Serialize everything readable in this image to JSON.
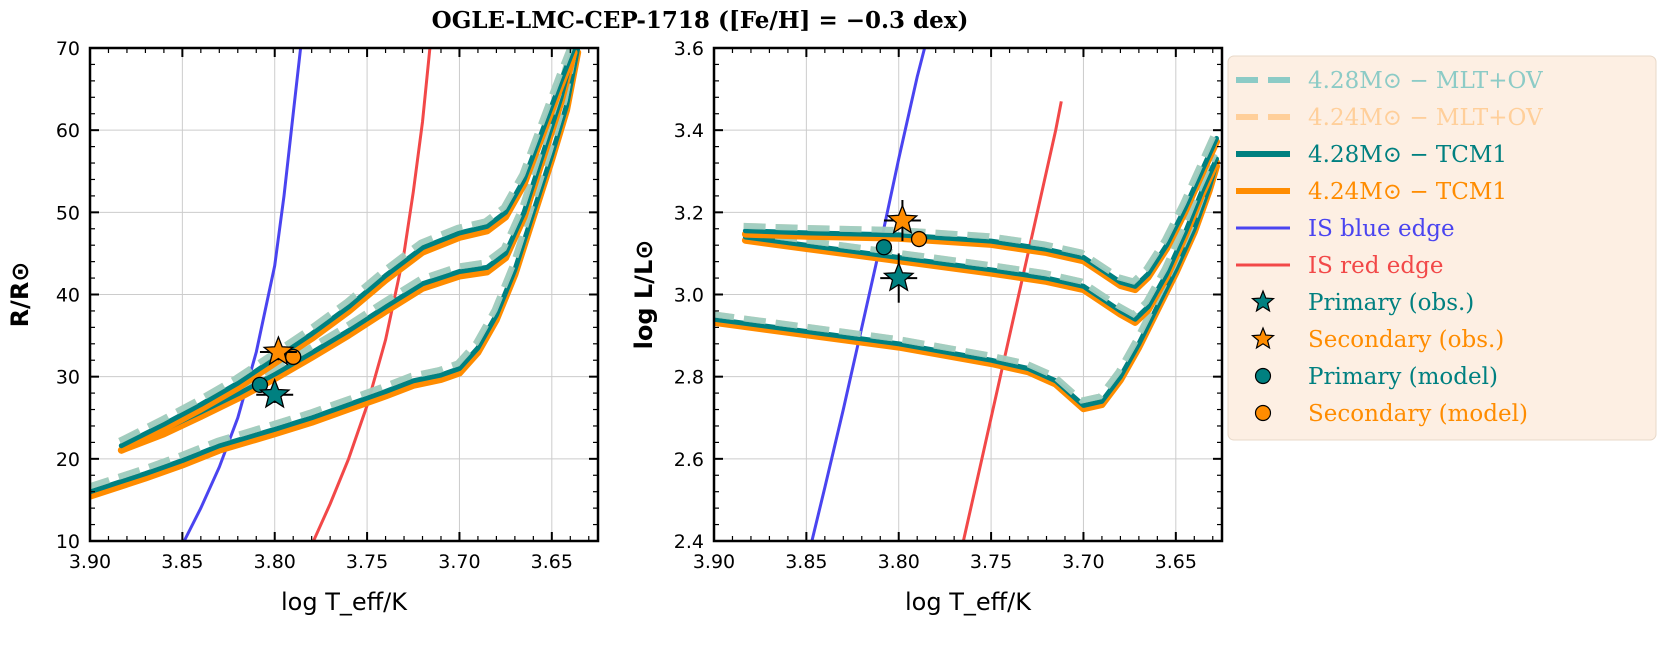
{
  "chart_data": {
    "type": "line",
    "title": "OGLE-LMC-CEP-1718 ([Fe/H] = −0.3 dex)",
    "colors": {
      "primary": "#008080",
      "secondary": "#ff8c00",
      "primary_light": "#8ccbc6",
      "secondary_light": "#ffcf9a",
      "blue_edge": "#4a44f0",
      "red_edge": "#f24848",
      "grid": "#cccccc",
      "legend_bg": "#fdefe3"
    },
    "legend": [
      {
        "key": "p_mlt",
        "label": "4.28M⊙ − MLT+OV",
        "kind": "dashed",
        "color": "primary_light"
      },
      {
        "key": "s_mlt",
        "label": "4.24M⊙ − MLT+OV",
        "kind": "dashed",
        "color": "secondary_light"
      },
      {
        "key": "p_tcm",
        "label": "4.28M⊙ − TCM1",
        "kind": "thick",
        "color": "primary"
      },
      {
        "key": "s_tcm",
        "label": "4.24M⊙ − TCM1",
        "kind": "thick",
        "color": "secondary"
      },
      {
        "key": "blue",
        "label": "IS blue edge",
        "kind": "line",
        "color": "blue_edge"
      },
      {
        "key": "red",
        "label": "IS red edge",
        "kind": "line",
        "color": "red_edge"
      },
      {
        "key": "p_obs",
        "label": "Primary (obs.)",
        "kind": "star",
        "color": "primary"
      },
      {
        "key": "s_obs",
        "label": "Secondary (obs.)",
        "kind": "star",
        "color": "secondary"
      },
      {
        "key": "p_mod",
        "label": "Primary (model)",
        "kind": "circle",
        "color": "primary"
      },
      {
        "key": "s_mod",
        "label": "Secondary (model)",
        "kind": "circle",
        "color": "secondary"
      }
    ],
    "panels": [
      {
        "id": "radius",
        "xlabel": "log T_eff/K",
        "ylabel": "R/R⊙",
        "xlim": [
          3.9,
          3.625
        ],
        "ylim": [
          10,
          70
        ],
        "xticks": [
          3.9,
          3.85,
          3.8,
          3.75,
          3.7,
          3.65
        ],
        "xtick_labels": [
          "3.90",
          "3.85",
          "3.80",
          "3.75",
          "3.70",
          "3.65"
        ],
        "yticks": [
          10,
          20,
          30,
          40,
          50,
          60,
          70
        ],
        "ytick_labels": [
          "10",
          "20",
          "30",
          "40",
          "50",
          "60",
          "70"
        ],
        "tracks": {
          "loop_outer": [
            [
              3.883,
              21.6
            ],
            [
              3.86,
              24.2
            ],
            [
              3.84,
              26.6
            ],
            [
              3.82,
              29.2
            ],
            [
              3.8,
              32.2
            ],
            [
              3.78,
              35.2
            ],
            [
              3.76,
              38.5
            ],
            [
              3.74,
              42.3
            ],
            [
              3.72,
              45.7
            ],
            [
              3.7,
              47.5
            ],
            [
              3.685,
              48.3
            ],
            [
              3.675,
              50.0
            ],
            [
              3.665,
              54.0
            ],
            [
              3.655,
              60.0
            ],
            [
              3.645,
              66.0
            ],
            [
              3.638,
              70.0
            ]
          ],
          "loop_inner": [
            [
              3.883,
              21.6
            ],
            [
              3.86,
              23.6
            ],
            [
              3.84,
              25.7
            ],
            [
              3.82,
              27.9
            ],
            [
              3.8,
              30.3
            ],
            [
              3.78,
              32.9
            ],
            [
              3.76,
              35.6
            ],
            [
              3.74,
              38.5
            ],
            [
              3.72,
              41.3
            ],
            [
              3.7,
              42.8
            ],
            [
              3.685,
              43.3
            ],
            [
              3.675,
              45.0
            ],
            [
              3.665,
              50.0
            ],
            [
              3.655,
              57.0
            ],
            [
              3.645,
              64.0
            ],
            [
              3.638,
              70.0
            ]
          ],
          "main": [
            [
              3.9,
              16.0
            ],
            [
              3.87,
              18.2
            ],
            [
              3.85,
              19.8
            ],
            [
              3.83,
              21.6
            ],
            [
              3.8,
              23.6
            ],
            [
              3.78,
              25.0
            ],
            [
              3.76,
              26.6
            ],
            [
              3.74,
              28.2
            ],
            [
              3.725,
              29.5
            ],
            [
              3.71,
              30.2
            ],
            [
              3.7,
              31.0
            ],
            [
              3.69,
              33.5
            ],
            [
              3.68,
              37.5
            ],
            [
              3.67,
              43.0
            ],
            [
              3.66,
              50.0
            ],
            [
              3.65,
              57.0
            ],
            [
              3.642,
              63.0
            ],
            [
              3.636,
              70.0
            ]
          ],
          "blue_edge": [
            [
              3.849,
              10.0
            ],
            [
              3.84,
              14.0
            ],
            [
              3.83,
              19.0
            ],
            [
              3.82,
              25.0
            ],
            [
              3.81,
              33.0
            ],
            [
              3.8,
              43.5
            ],
            [
              3.795,
              52.0
            ],
            [
              3.79,
              62.0
            ],
            [
              3.786,
              70.0
            ]
          ],
          "red_edge": [
            [
              3.779,
              10.0
            ],
            [
              3.77,
              14.5
            ],
            [
              3.76,
              20.0
            ],
            [
              3.75,
              26.5
            ],
            [
              3.74,
              34.5
            ],
            [
              3.73,
              45.0
            ],
            [
              3.725,
              52.5
            ],
            [
              3.72,
              61.0
            ],
            [
              3.716,
              70.0
            ]
          ]
        },
        "points": {
          "primary_obs": {
            "x": 3.8,
            "y": 27.8,
            "xerr": 0.01,
            "yerr": 1.0
          },
          "secondary_obs": {
            "x": 3.798,
            "y": 33.0,
            "xerr": 0.01,
            "yerr": 1.0
          },
          "primary_model": {
            "x": 3.808,
            "y": 29.0
          },
          "secondary_model": {
            "x": 3.79,
            "y": 32.4
          }
        }
      },
      {
        "id": "luminosity",
        "xlabel": "log T_eff/K",
        "ylabel": "log L/L⊙",
        "xlim": [
          3.9,
          3.625
        ],
        "ylim": [
          2.4,
          3.6
        ],
        "xticks": [
          3.9,
          3.85,
          3.8,
          3.75,
          3.7,
          3.65
        ],
        "xtick_labels": [
          "3.90",
          "3.85",
          "3.80",
          "3.75",
          "3.70",
          "3.65"
        ],
        "yticks": [
          2.4,
          2.6,
          2.8,
          3.0,
          3.2,
          3.4,
          3.6
        ],
        "ytick_labels": [
          "2.4",
          "2.6",
          "2.8",
          "3.0",
          "3.2",
          "3.4",
          "3.6"
        ],
        "tracks": {
          "loop_outer": [
            [
              3.883,
              3.155
            ],
            [
              3.85,
              3.15
            ],
            [
              3.8,
              3.145
            ],
            [
              3.75,
              3.13
            ],
            [
              3.72,
              3.11
            ],
            [
              3.7,
              3.09
            ],
            [
              3.69,
              3.06
            ],
            [
              3.68,
              3.03
            ],
            [
              3.672,
              3.02
            ],
            [
              3.665,
              3.05
            ],
            [
              3.655,
              3.12
            ],
            [
              3.645,
              3.21
            ],
            [
              3.636,
              3.3
            ],
            [
              3.628,
              3.38
            ]
          ],
          "loop_inner": [
            [
              3.883,
              3.14
            ],
            [
              3.85,
              3.12
            ],
            [
              3.8,
              3.09
            ],
            [
              3.75,
              3.06
            ],
            [
              3.72,
              3.04
            ],
            [
              3.7,
              3.02
            ],
            [
              3.69,
              2.99
            ],
            [
              3.68,
              2.96
            ],
            [
              3.672,
              2.94
            ],
            [
              3.665,
              2.97
            ],
            [
              3.655,
              3.05
            ],
            [
              3.645,
              3.15
            ],
            [
              3.636,
              3.25
            ],
            [
              3.628,
              3.33
            ]
          ],
          "main": [
            [
              3.9,
              2.94
            ],
            [
              3.85,
              2.91
            ],
            [
              3.8,
              2.88
            ],
            [
              3.75,
              2.84
            ],
            [
              3.73,
              2.82
            ],
            [
              3.715,
              2.79
            ],
            [
              3.705,
              2.75
            ],
            [
              3.7,
              2.73
            ],
            [
              3.69,
              2.74
            ],
            [
              3.68,
              2.8
            ],
            [
              3.67,
              2.88
            ],
            [
              3.66,
              2.97
            ],
            [
              3.65,
              3.06
            ],
            [
              3.64,
              3.16
            ],
            [
              3.632,
              3.26
            ],
            [
              3.628,
              3.32
            ]
          ],
          "blue_edge": [
            [
              3.847,
              2.4
            ],
            [
              3.84,
              2.53
            ],
            [
              3.83,
              2.72
            ],
            [
              3.82,
              2.92
            ],
            [
              3.81,
              3.12
            ],
            [
              3.8,
              3.33
            ],
            [
              3.79,
              3.53
            ],
            [
              3.786,
              3.6
            ]
          ],
          "red_edge": [
            [
              3.765,
              2.4
            ],
            [
              3.755,
              2.6
            ],
            [
              3.745,
              2.8
            ],
            [
              3.735,
              3.0
            ],
            [
              3.725,
              3.2
            ],
            [
              3.715,
              3.4
            ],
            [
              3.712,
              3.47
            ]
          ]
        },
        "points": {
          "primary_obs": {
            "x": 3.8,
            "y": 3.04,
            "xerr": 0.01,
            "yerr": 0.06
          },
          "secondary_obs": {
            "x": 3.798,
            "y": 3.18,
            "xerr": 0.01,
            "yerr": 0.05
          },
          "primary_model": {
            "x": 3.808,
            "y": 3.115
          },
          "secondary_model": {
            "x": 3.789,
            "y": 3.135
          }
        }
      }
    ]
  }
}
